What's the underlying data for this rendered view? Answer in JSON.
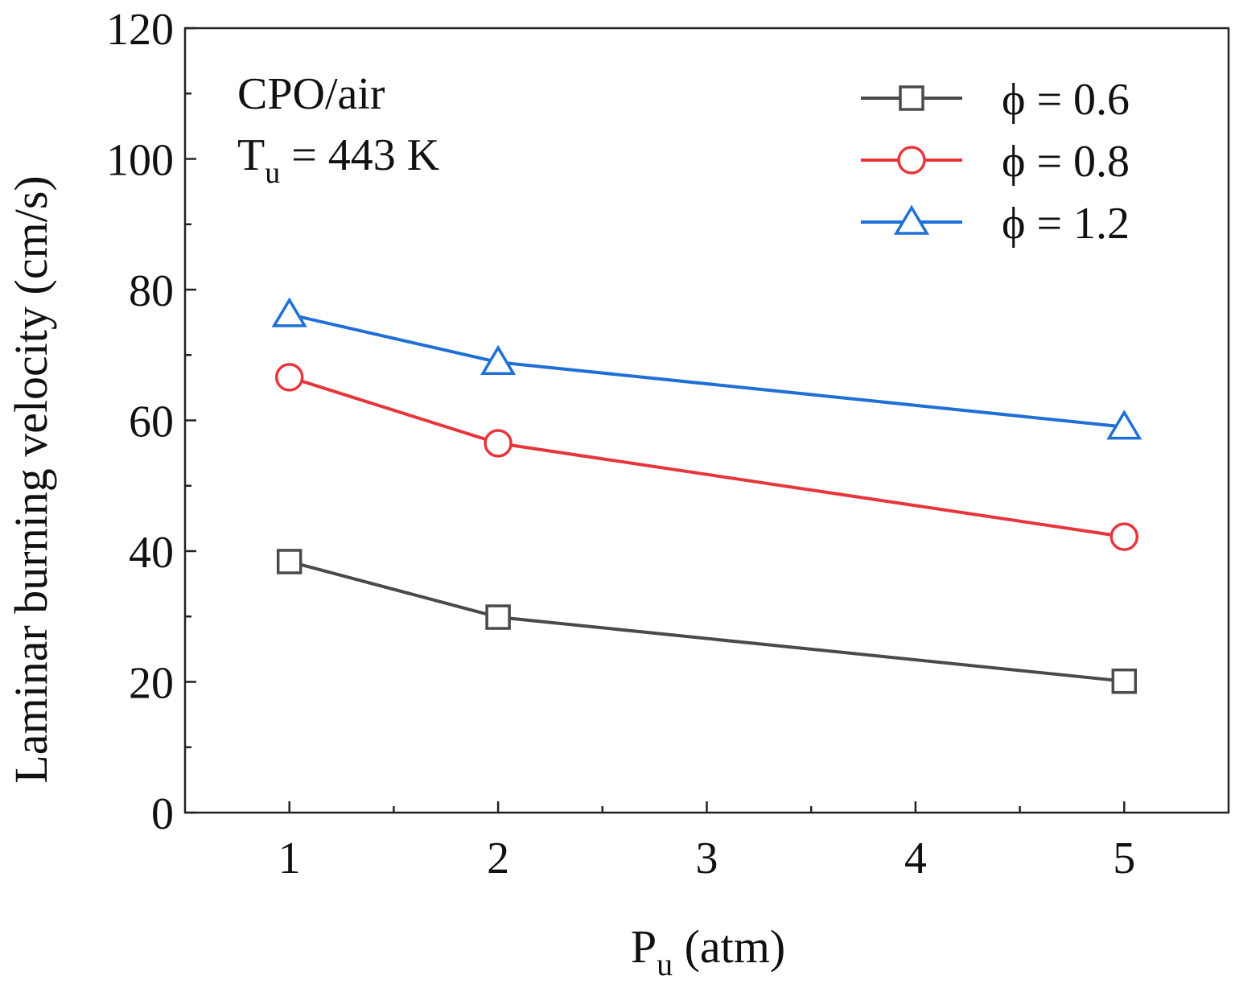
{
  "chart_data": {
    "type": "line",
    "xlabel": {
      "main": "P",
      "sub": "u",
      "rest": " (atm)"
    },
    "ylabel": "Laminar burning velocity (cm/s)",
    "annotations": [
      {
        "main": "CPO/air"
      },
      {
        "main": "T",
        "sub": "u",
        "rest": " = 443 K"
      }
    ],
    "x": [
      1,
      2,
      5
    ],
    "series": [
      {
        "name": "ϕ = 0.6",
        "color": "#4a4a4a",
        "marker": "square",
        "values": [
          38.4,
          29.9,
          20.1
        ]
      },
      {
        "name": "ϕ = 0.8",
        "color": "#e8353b",
        "marker": "circle",
        "values": [
          66.6,
          56.5,
          42.2
        ]
      },
      {
        "name": "ϕ = 1.2",
        "color": "#1f6fd6",
        "marker": "triangle",
        "values": [
          76.2,
          68.9,
          59.0
        ]
      }
    ],
    "xlim": [
      0.5,
      5.5
    ],
    "xticks": [
      1,
      2,
      3,
      4,
      5
    ],
    "ylim": [
      0,
      120
    ],
    "yticks": [
      0,
      20,
      40,
      60,
      80,
      100,
      120
    ],
    "legend": "upper right"
  }
}
